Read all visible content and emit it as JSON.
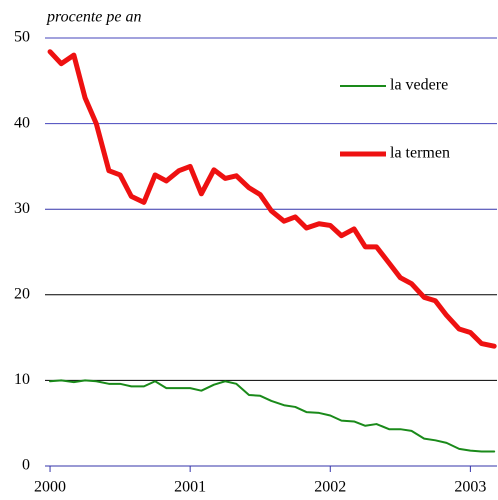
{
  "chart_data": {
    "type": "line",
    "y_axis_label": "procente pe an",
    "x": [
      2000.0,
      2000.08,
      2000.17,
      2000.25,
      2000.33,
      2000.42,
      2000.5,
      2000.58,
      2000.67,
      2000.75,
      2000.83,
      2000.92,
      2001.0,
      2001.08,
      2001.17,
      2001.25,
      2001.33,
      2001.42,
      2001.5,
      2001.58,
      2001.67,
      2001.75,
      2001.83,
      2001.92,
      2002.0,
      2002.08,
      2002.17,
      2002.25,
      2002.33,
      2002.42,
      2002.5,
      2002.58,
      2002.67,
      2002.75,
      2002.83,
      2002.92,
      2003.0,
      2003.08,
      2003.17
    ],
    "series": [
      {
        "name": "la vedere",
        "color": "#1a8a1a",
        "values": [
          9.9,
          10.0,
          9.8,
          10.0,
          9.9,
          9.6,
          9.6,
          9.3,
          9.3,
          9.9,
          9.1,
          9.1,
          9.1,
          8.8,
          9.5,
          9.9,
          9.6,
          8.3,
          8.2,
          7.6,
          7.1,
          6.9,
          6.3,
          6.2,
          5.9,
          5.3,
          5.2,
          4.7,
          4.9,
          4.3,
          4.3,
          4.1,
          3.2,
          3.0,
          2.7,
          2.0,
          1.8,
          1.7,
          1.7
        ]
      },
      {
        "name": "la termen",
        "color": "#ee1111",
        "values": [
          48.4,
          47.0,
          48.0,
          43.0,
          40.0,
          34.5,
          34.0,
          31.5,
          30.8,
          34.0,
          33.3,
          34.5,
          35.0,
          31.8,
          34.6,
          33.6,
          33.9,
          32.5,
          31.7,
          29.8,
          28.6,
          29.1,
          27.8,
          28.3,
          28.1,
          26.9,
          27.7,
          25.6,
          25.6,
          23.7,
          22.0,
          21.3,
          19.7,
          19.3,
          17.6,
          16.0,
          15.6,
          14.3,
          14.0
        ]
      }
    ],
    "xlim": [
      1999.964,
      2003.19
    ],
    "xticks": [
      2000,
      2001,
      2002,
      2003
    ],
    "ylim": [
      0,
      50
    ],
    "yticks": [
      0,
      10,
      20,
      30,
      40,
      50
    ],
    "grid": true
  }
}
